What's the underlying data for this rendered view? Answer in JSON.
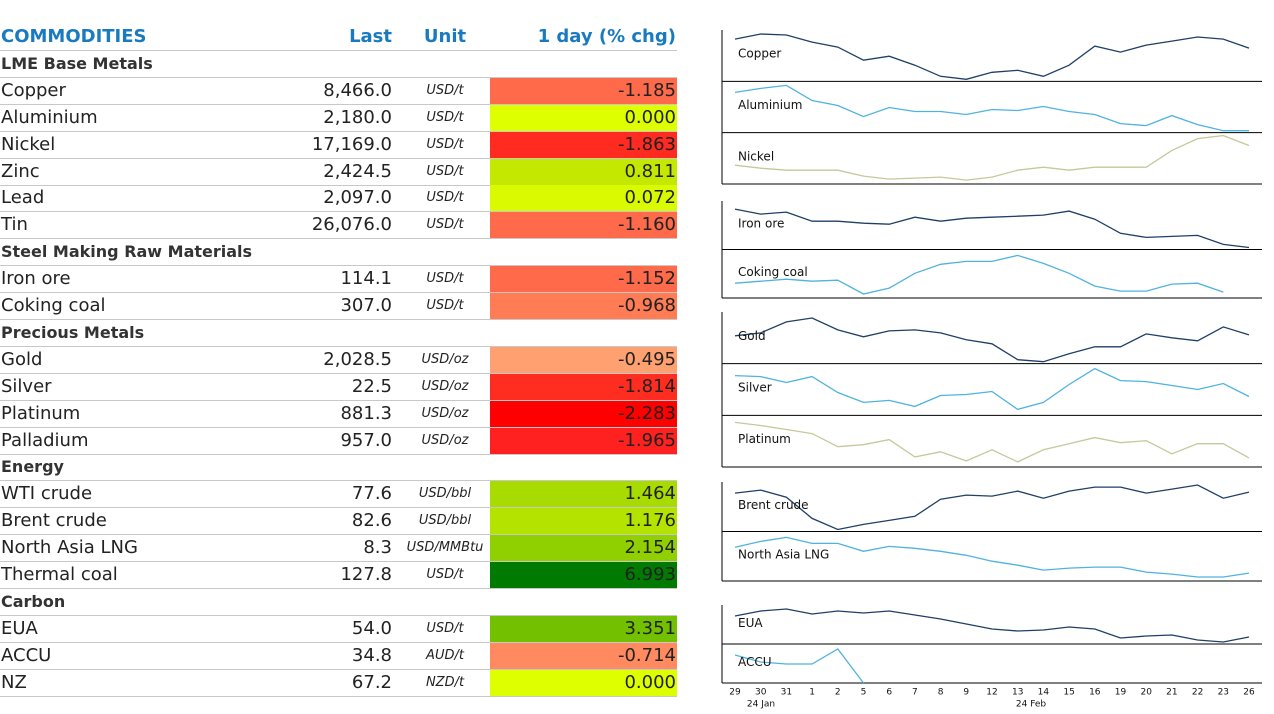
{
  "table": {
    "columns": [
      "COMMODITIES",
      "Last",
      "Unit",
      "1 day (% chg)"
    ],
    "sections": [
      {
        "name": "LME Base Metals",
        "rows": [
          {
            "name": "Copper",
            "last": "8,466.0",
            "unit": "USD/t",
            "change": "-1.185",
            "color": "#ff6a4a"
          },
          {
            "name": "Aluminium",
            "last": "2,180.0",
            "unit": "USD/t",
            "change": "0.000",
            "color": "#ddff00"
          },
          {
            "name": "Nickel",
            "last": "17,169.0",
            "unit": "USD/t",
            "change": "-1.863",
            "color": "#ff2a20"
          },
          {
            "name": "Zinc",
            "last": "2,424.5",
            "unit": "USD/t",
            "change": "0.811",
            "color": "#c4e800"
          },
          {
            "name": "Lead",
            "last": "2,097.0",
            "unit": "USD/t",
            "change": "0.072",
            "color": "#d9fa00"
          },
          {
            "name": "Tin",
            "last": "26,076.0",
            "unit": "USD/t",
            "change": "-1.160",
            "color": "#ff6b4a"
          }
        ]
      },
      {
        "name": "Steel Making Raw Materials",
        "rows": [
          {
            "name": "Iron ore",
            "last": "114.1",
            "unit": "USD/t",
            "change": "-1.152",
            "color": "#ff6b4a"
          },
          {
            "name": "Coking coal",
            "last": "307.0",
            "unit": "USD/t",
            "change": "-0.968",
            "color": "#ff7c55"
          }
        ]
      },
      {
        "name": "Precious Metals",
        "rows": [
          {
            "name": "Gold",
            "last": "2,028.5",
            "unit": "USD/oz",
            "change": "-0.495",
            "color": "#ffa070"
          },
          {
            "name": "Silver",
            "last": "22.5",
            "unit": "USD/oz",
            "change": "-1.814",
            "color": "#ff2d20"
          },
          {
            "name": "Platinum",
            "last": "881.3",
            "unit": "USD/oz",
            "change": "-2.283",
            "color": "#ff0000"
          },
          {
            "name": "Palladium",
            "last": "957.0",
            "unit": "USD/oz",
            "change": "-1.965",
            "color": "#ff2020"
          }
        ]
      },
      {
        "name": "Energy",
        "rows": [
          {
            "name": "WTI crude",
            "last": "77.6",
            "unit": "USD/bbl",
            "change": "1.464",
            "color": "#a8dc00"
          },
          {
            "name": "Brent crude",
            "last": "82.6",
            "unit": "USD/bbl",
            "change": "1.176",
            "color": "#b4e300"
          },
          {
            "name": "North Asia LNG",
            "last": "8.3",
            "unit": "USD/MMBtu",
            "change": "2.154",
            "color": "#90d000"
          },
          {
            "name": "Thermal coal",
            "last": "127.8",
            "unit": "USD/t",
            "change": "6.993",
            "color": "#007a00"
          }
        ]
      },
      {
        "name": "Carbon",
        "rows": [
          {
            "name": "EUA",
            "last": "54.0",
            "unit": "USD/t",
            "change": "3.351",
            "color": "#72c000"
          },
          {
            "name": "ACCU",
            "last": "34.8",
            "unit": "AUD/t",
            "change": "-0.714",
            "color": "#ff8a60"
          },
          {
            "name": "NZ",
            "last": "67.2",
            "unit": "NZD/t",
            "change": "0.000",
            "color": "#ddff00"
          }
        ]
      }
    ]
  },
  "sparklines": {
    "type": "line",
    "x": [
      "29",
      "30",
      "31",
      "1",
      "2",
      "5",
      "6",
      "7",
      "8",
      "9",
      "12",
      "13",
      "14",
      "15",
      "16",
      "19",
      "20",
      "21",
      "22",
      "23",
      "26"
    ],
    "month_labels": [
      "24 Jan",
      "24 Feb"
    ],
    "groups": [
      [
        {
          "name": "Copper",
          "color": "#1f3f66",
          "ylim": [
            0,
            51
          ],
          "values": [
            42,
            47,
            46,
            39,
            34,
            21,
            25,
            16,
            5,
            2,
            9,
            11,
            5,
            16,
            35,
            29,
            36,
            40,
            44,
            42,
            33
          ]
        },
        {
          "name": "Aluminium",
          "color": "#4fb3df",
          "ylim": [
            0,
            51
          ],
          "values": [
            40,
            44,
            47,
            32,
            27,
            16,
            25,
            21,
            21,
            18,
            23,
            22,
            26,
            21,
            18,
            9,
            7,
            17,
            8,
            2,
            2
          ]
        },
        {
          "name": "Nickel",
          "color": "#c7c89a",
          "ylim": [
            0,
            52
          ],
          "values": [
            19,
            16,
            14,
            14,
            14,
            8,
            5,
            6,
            7,
            4,
            7,
            14,
            17,
            14,
            17,
            17,
            17,
            34,
            46,
            49,
            39
          ]
        }
      ],
      [
        {
          "name": "Iron ore",
          "color": "#1f3f66",
          "ylim": [
            0,
            48
          ],
          "values": [
            40,
            35,
            37,
            28,
            28,
            26,
            25,
            32,
            28,
            31,
            32,
            33,
            34,
            38,
            30,
            16,
            12,
            13,
            14,
            5,
            2
          ]
        },
        {
          "name": "Coking coal",
          "color": "#4fb3df",
          "ylim": [
            0,
            49
          ],
          "values": [
            15,
            17,
            19,
            17,
            18,
            4,
            10,
            25,
            34,
            37,
            37,
            43,
            35,
            25,
            12,
            7,
            7,
            14,
            15,
            6,
            null
          ]
        }
      ],
      [
        {
          "name": "Gold",
          "color": "#1f3f66",
          "ylim": [
            0,
            52
          ],
          "values": [
            28,
            31,
            42,
            46,
            34,
            27,
            33,
            34,
            31,
            24,
            20,
            4,
            2,
            10,
            17,
            17,
            30,
            26,
            23,
            37,
            29
          ]
        },
        {
          "name": "Silver",
          "color": "#4fb3df",
          "ylim": [
            0,
            52
          ],
          "values": [
            40,
            39,
            33,
            39,
            23,
            13,
            15,
            9,
            20,
            21,
            24,
            6,
            13,
            31,
            47,
            35,
            34,
            30,
            26,
            32,
            19
          ]
        },
        {
          "name": "Platinum",
          "color": "#c7c89a",
          "ylim": [
            0,
            51
          ],
          "values": [
            44,
            41,
            37,
            33,
            20,
            22,
            27,
            10,
            15,
            6,
            17,
            5,
            17,
            23,
            29,
            24,
            26,
            13,
            23,
            23,
            9
          ]
        }
      ],
      [
        {
          "name": "Brent crude",
          "color": "#1f3f66",
          "ylim": [
            0,
            49
          ],
          "values": [
            38,
            41,
            34,
            13,
            2,
            7,
            11,
            15,
            32,
            36,
            35,
            40,
            33,
            40,
            44,
            44,
            38,
            42,
            46,
            33,
            39
          ]
        },
        {
          "name": "North Asia LNG",
          "color": "#4fb3df",
          "ylim": [
            0,
            50
          ],
          "values": [
            34,
            40,
            44,
            38,
            38,
            30,
            35,
            33,
            30,
            26,
            20,
            16,
            11,
            13,
            14,
            14,
            9,
            7,
            4,
            4,
            8
          ]
        }
      ],
      [
        {
          "name": "EUA",
          "color": "#1f3f66",
          "ylim": [
            0,
            39
          ],
          "values": [
            28,
            33,
            35,
            30,
            33,
            31,
            33,
            29,
            25,
            20,
            15,
            13,
            14,
            17,
            15,
            6,
            8,
            9,
            4,
            2,
            7
          ]
        },
        {
          "name": "ACCU",
          "color": "#4fb3df",
          "ylim": [
            0,
            39
          ],
          "values": [
            28,
            21,
            19,
            19,
            34,
            0,
            null,
            null,
            null,
            null,
            null,
            null,
            null,
            null,
            null,
            null,
            null,
            null,
            null,
            null,
            null
          ]
        }
      ]
    ]
  }
}
